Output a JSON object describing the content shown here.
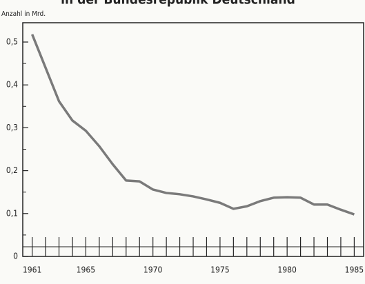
{
  "chart_data": {
    "type": "line",
    "title": "in der Bundesrepublik Deutschland",
    "y_label": "Anzahl in Mrd.",
    "x": [
      1961,
      1962,
      1963,
      1964,
      1965,
      1966,
      1967,
      1968,
      1969,
      1970,
      1971,
      1972,
      1973,
      1974,
      1975,
      1976,
      1977,
      1978,
      1979,
      1980,
      1981,
      1982,
      1983,
      1984,
      1985
    ],
    "series": [
      {
        "color": "#7a7a7a",
        "values": [
          0.518,
          0.44,
          0.362,
          0.317,
          0.293,
          0.257,
          0.215,
          0.177,
          0.175,
          0.156,
          0.148,
          0.145,
          0.14,
          0.133,
          0.125,
          0.111,
          0.117,
          0.129,
          0.137,
          0.138,
          0.137,
          0.121,
          0.121,
          0.109,
          0.098
        ]
      }
    ],
    "xlim": [
      1960.3,
      1985.7
    ],
    "ylim": [
      0,
      0.545
    ],
    "xticks": [
      1961,
      1965,
      1970,
      1975,
      1980,
      1985
    ],
    "xminorticks": [
      1961,
      1962,
      1963,
      1964,
      1965,
      1966,
      1967,
      1968,
      1969,
      1970,
      1971,
      1972,
      1973,
      1974,
      1975,
      1976,
      1977,
      1978,
      1979,
      1980,
      1981,
      1982,
      1983,
      1984,
      1985
    ],
    "yticks": [
      0,
      {
        "value": 0.1,
        "label": "0,1"
      },
      {
        "value": 0.2,
        "label": "0,2"
      },
      {
        "value": 0.3,
        "label": "0,3"
      },
      {
        "value": 0.4,
        "label": "0,4"
      },
      {
        "value": 0.5,
        "label": "0,5"
      }
    ],
    "yminorticks": [
      0.05,
      0.15,
      0.25,
      0.35,
      0.45
    ]
  }
}
